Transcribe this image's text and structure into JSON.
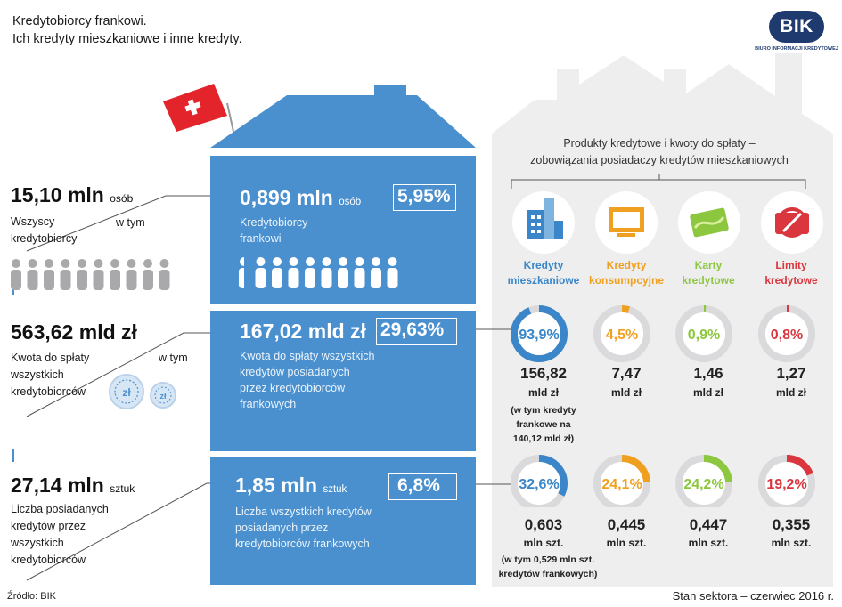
{
  "header": {
    "title_line1": "Kredytobiorcy frankowi.",
    "title_line2": "Ich kredyty mieszkaniowe i inne kredyty."
  },
  "logo": {
    "text": "BIK",
    "subtitle": "BIURO INFORMACJI KREDYTOWEJ"
  },
  "left": {
    "borrowers": {
      "value": "15,10 mln",
      "unit": "osób",
      "label_lines": [
        "Wszyscy",
        "kredytobiorcy"
      ]
    },
    "amount": {
      "value": "563,62 mld zł",
      "label_lines": [
        "Kwota do spłaty",
        "wszystkich",
        "kredytobiorców"
      ]
    },
    "loans": {
      "value": "27,14 mln",
      "unit": "sztuk",
      "label_lines": [
        "Liczba posiadanych",
        "kredytów przez",
        "wszystkich",
        "kredytobiorców"
      ]
    },
    "w_tym": "w tym",
    "coin_symbol": "zł"
  },
  "middle": {
    "box1": {
      "value": "0,899 mln",
      "unit": "osób",
      "pct": "5,95%",
      "desc_lines": [
        "Kredytobiorcy",
        "frankowi"
      ]
    },
    "box2": {
      "value": "167,02 mld zł",
      "pct": "29,63%",
      "desc_lines": [
        "Kwota do spłaty wszystkich",
        "kredytów posiadanych",
        "przez kredytobiorców",
        "frankowych"
      ]
    },
    "box3": {
      "value": "1,85 mln",
      "unit": "sztuk",
      "pct": "6,8%",
      "desc_lines": [
        "Liczba wszystkich kredytów",
        "posiadanych przez",
        "kredytobiorców frankowych"
      ]
    }
  },
  "panel": {
    "title_lines": [
      "Produkty kredytowe i kwoty do spłaty –",
      "zobowiązania posiadaczy kredytów mieszkaniowych"
    ],
    "categories": [
      {
        "name_lines": [
          "Kredyty",
          "mieszkaniowe"
        ],
        "color": "#3a86c8",
        "icon": "building-icon"
      },
      {
        "name_lines": [
          "Kredyty",
          "konsumpcyjne"
        ],
        "color": "#f0a020",
        "icon": "tv-icon"
      },
      {
        "name_lines": [
          "Karty",
          "kredytowe"
        ],
        "color": "#8dc63f",
        "icon": "credit-card-icon"
      },
      {
        "name_lines": [
          "Limity",
          "kredytowe"
        ],
        "color": "#d9363e",
        "icon": "no-limit-icon"
      }
    ],
    "amount_values": [
      {
        "value": "156,82",
        "unit": "mld zł"
      },
      {
        "value": "7,47",
        "unit": "mld zł"
      },
      {
        "value": "1,46",
        "unit": "mld zł"
      },
      {
        "value": "1,27",
        "unit": "mld zł"
      }
    ],
    "amount_note_lines": [
      "(w tym kredyty",
      "frankowe na",
      "140,12 mld zł)"
    ],
    "count_values": [
      {
        "value": "0,603",
        "unit": "mln szt."
      },
      {
        "value": "0,445",
        "unit": "mln szt."
      },
      {
        "value": "0,447",
        "unit": "mln szt."
      },
      {
        "value": "0,355",
        "unit": "mln szt."
      }
    ],
    "count_note_lines": [
      "(w tym 0,529 mln szt.",
      "kredytów frankowych)"
    ]
  },
  "chart_data": [
    {
      "type": "pie",
      "categories": [
        "Kredyty mieszkaniowe",
        "Kredyty konsumpcyjne",
        "Karty kredytowe",
        "Limity kredytowe"
      ],
      "values": [
        93.9,
        4.5,
        0.9,
        0.8
      ],
      "labels": [
        "93,9%",
        "4,5%",
        "0,9%",
        "0,8%"
      ]
    },
    {
      "type": "pie",
      "categories": [
        "Kredyty mieszkaniowe",
        "Kredyty konsumpcyjne",
        "Karty kredytowe",
        "Limity kredytowe"
      ],
      "values": [
        32.6,
        24.1,
        24.2,
        19.2
      ],
      "labels": [
        "32,6%",
        "24,1%",
        "24,2%",
        "19,2%"
      ]
    }
  ],
  "footer": {
    "source": "Źródło: BIK",
    "date": "Stan sektora – czerwiec 2016 r."
  }
}
